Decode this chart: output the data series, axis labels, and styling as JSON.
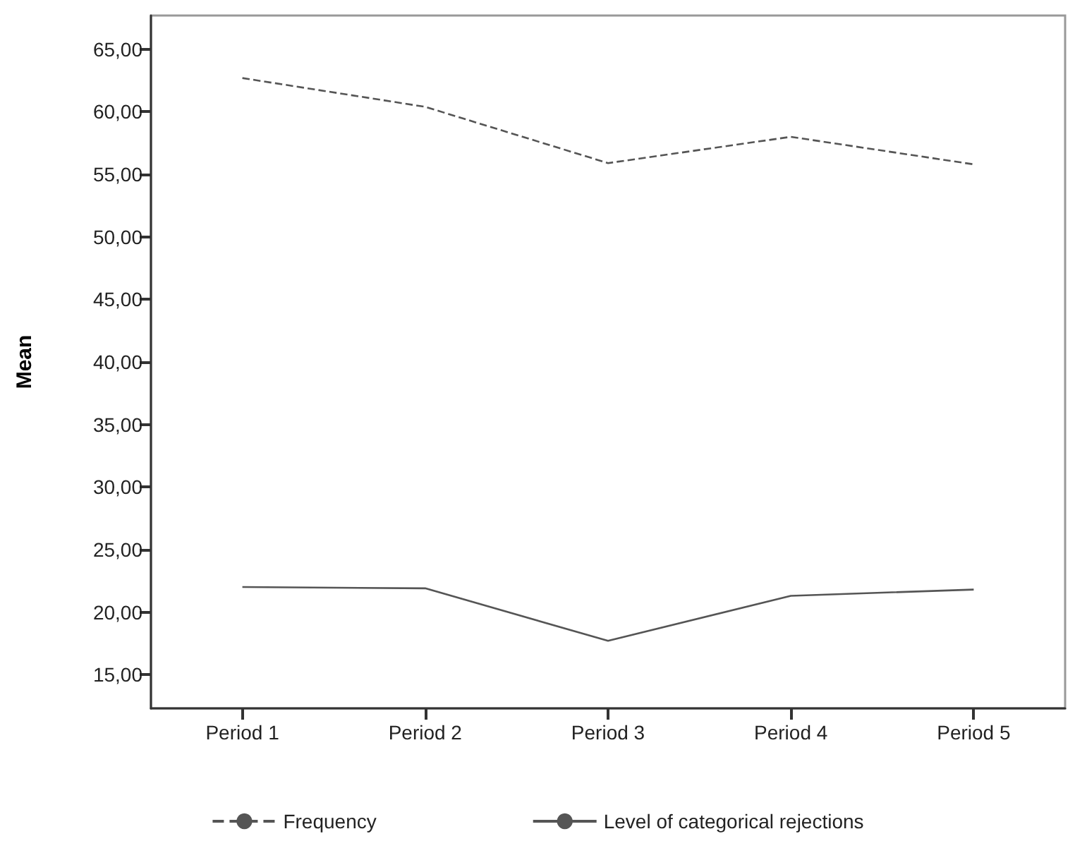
{
  "chart_data": {
    "type": "line",
    "ylabel": "Mean",
    "categories": [
      "Period 1",
      "Period 2",
      "Period 3",
      "Period 4",
      "Period 5"
    ],
    "series": [
      {
        "name": "Frequency",
        "color": "#555555",
        "line_style": "dashed",
        "values": [
          62.7,
          60.4,
          55.9,
          58.0,
          55.8
        ]
      },
      {
        "name": "Level of categorical rejections",
        "color": "#555555",
        "line_style": "solid",
        "values": [
          22.0,
          21.9,
          17.7,
          21.3,
          21.8
        ]
      }
    ],
    "ylim": [
      12.3,
      67.7
    ],
    "yticks": [
      {
        "value": 15,
        "label": "15,00"
      },
      {
        "value": 20,
        "label": "20,00"
      },
      {
        "value": 25,
        "label": "25,00"
      },
      {
        "value": 30,
        "label": "30,00"
      },
      {
        "value": 35,
        "label": "35,00"
      },
      {
        "value": 40,
        "label": "40,00"
      },
      {
        "value": 45,
        "label": "45,00"
      },
      {
        "value": 50,
        "label": "50,00"
      },
      {
        "value": 55,
        "label": "55,00"
      },
      {
        "value": 60,
        "label": "60,00"
      },
      {
        "value": 65,
        "label": "65,00"
      }
    ],
    "grid": false,
    "legend": "bottom",
    "marker": "none"
  }
}
